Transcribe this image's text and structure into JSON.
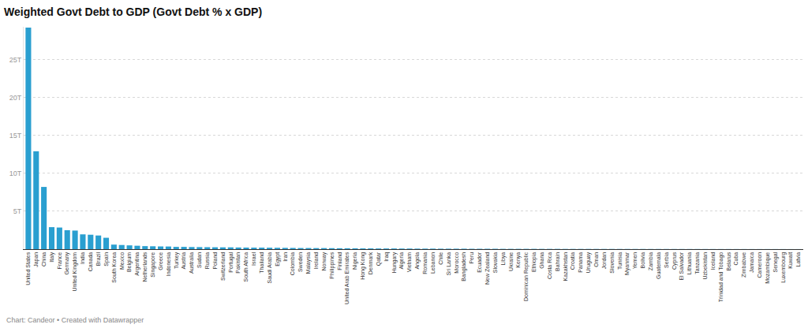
{
  "chart_data": {
    "type": "bar",
    "title": "Weighted Govt Debt to GDP (Govt Debt % x GDP)",
    "annotations": [
      "Chart: Candeor • Created with Datawrapper"
    ],
    "categories": [
      "United States",
      "Japan",
      "China",
      "Italy",
      "France",
      "Germany",
      "United Kingdom",
      "India",
      "Canada",
      "Brazil",
      "Spain",
      "South Korea",
      "Mexico",
      "Belgium",
      "Argentina",
      "Netherlands",
      "Singapore",
      "Greece",
      "Indonesia",
      "Turkey",
      "Austria",
      "Australia",
      "Sudan",
      "Russia",
      "Poland",
      "Switzerland",
      "Portugal",
      "Pakistan",
      "South Africa",
      "Israel",
      "Thailand",
      "Saudi Arabia",
      "Egypt",
      "Iran",
      "Colombia",
      "Sweden",
      "Malaysia",
      "Ireland",
      "Norway",
      "Philippines",
      "Finland",
      "United Arab Emirates",
      "Nigeria",
      "Hong Kong",
      "Denmark",
      "Qatar",
      "Iraq",
      "Hungary",
      "Algeria",
      "Vietnam",
      "Angola",
      "Romania",
      "Lebanon",
      "Chile",
      "Sri Lanka",
      "Morocco",
      "Bangladesh",
      "Peru",
      "Ecuador",
      "New Zealand",
      "Slovakia",
      "Libya",
      "Ukraine",
      "Kenya",
      "Dominican Republic",
      "Ethiopia",
      "Ghana",
      "Costa Rica",
      "Bahrain",
      "Kazakhstan",
      "Croatia",
      "Panama",
      "Uruguay",
      "Oman",
      "Jordan",
      "Slovenia",
      "Tunisia",
      "Myanmar",
      "Yemen",
      "Bolivia",
      "Zambia",
      "Guatemala",
      "Serbia",
      "Cyprus",
      "El Salvador",
      "Lithuania",
      "Tanzania",
      "Uzbekistan",
      "Iceland",
      "Trinidad and Tobago",
      "Belarus",
      "Cuba",
      "Zimbabwe",
      "Jamaica",
      "Cameroon",
      "Mozambique",
      "Senegal",
      "Luxembourg",
      "Kuwait",
      "Latvia"
    ],
    "values": [
      29.2,
      12.9,
      8.2,
      2.9,
      2.85,
      2.5,
      2.45,
      1.95,
      1.9,
      1.8,
      1.5,
      0.6,
      0.55,
      0.5,
      0.45,
      0.4,
      0.38,
      0.36,
      0.35,
      0.3,
      0.3,
      0.28,
      0.27,
      0.26,
      0.25,
      0.24,
      0.24,
      0.22,
      0.21,
      0.2,
      0.2,
      0.19,
      0.18,
      0.17,
      0.16,
      0.15,
      0.15,
      0.14,
      0.14,
      0.13,
      0.12,
      0.12,
      0.11,
      0.1,
      0.1,
      0.09,
      0.09,
      0.09,
      0.08,
      0.08,
      0.07,
      0.07,
      0.07,
      0.06,
      0.06,
      0.06,
      0.06,
      0.05,
      0.05,
      0.05,
      0.05,
      0.04,
      0.04,
      0.04,
      0.04,
      0.04,
      0.035,
      0.035,
      0.035,
      0.03,
      0.03,
      0.03,
      0.03,
      0.028,
      0.027,
      0.027,
      0.026,
      0.025,
      0.024,
      0.024,
      0.022,
      0.022,
      0.021,
      0.02,
      0.02,
      0.019,
      0.018,
      0.017,
      0.016,
      0.015,
      0.015,
      0.014,
      0.013,
      0.012,
      0.012,
      0.011,
      0.01,
      0.01,
      0.008,
      0.008
    ],
    "color": "#2a9fd0",
    "ylim": [
      0,
      29.3
    ],
    "yticks": [
      {
        "value": 5,
        "label": "5T"
      },
      {
        "value": 10,
        "label": "10T"
      },
      {
        "value": 15,
        "label": "15T"
      },
      {
        "value": 20,
        "label": "20T"
      },
      {
        "value": 25,
        "label": "25T"
      }
    ],
    "grid": true
  }
}
